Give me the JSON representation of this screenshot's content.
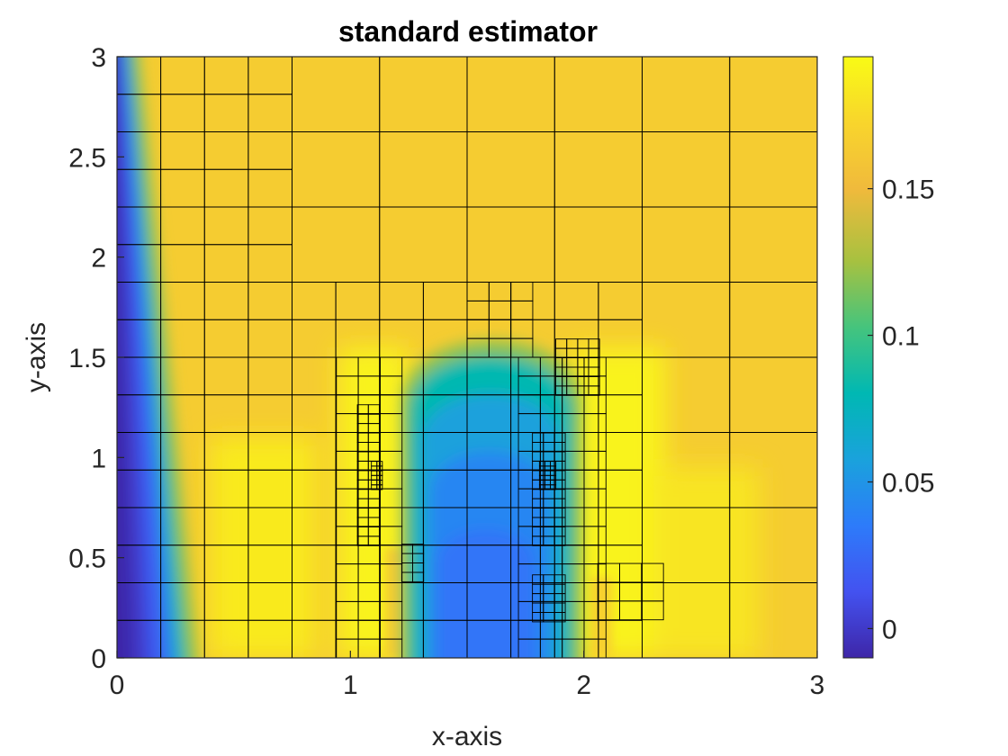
{
  "chart_data": {
    "type": "heatmap",
    "title": "standard estimator",
    "xlabel": "x-axis",
    "ylabel": "y-axis",
    "xlim": [
      0,
      3
    ],
    "ylim": [
      0,
      3
    ],
    "x_ticks": [
      "0",
      "1",
      "2",
      "3"
    ],
    "y_ticks": [
      "0",
      "0.5",
      "1",
      "1.5",
      "2",
      "2.5",
      "3"
    ],
    "colorbar": {
      "range": [
        -0.01,
        0.195
      ],
      "ticks": [
        "0",
        "0.05",
        "0.1",
        "0.15"
      ],
      "colormap": "parula",
      "colors": [
        "#3e26a8",
        "#4352f0",
        "#2d7bfa",
        "#1aa2dc",
        "#00b8b3",
        "#45c47d",
        "#a7c140",
        "#f0ba3c",
        "#f8d52c",
        "#f9fb15"
      ]
    },
    "field_description_values": {
      "background": 0.165,
      "left_boundary_min": -0.01,
      "central_plume_min": 0.02,
      "central_plume_top_y": 1.65,
      "central_plume_x_range": [
        1.25,
        1.95
      ],
      "yellow_band_max": 0.19
    },
    "mesh": {
      "type": "adaptive quadtree",
      "levels": [
        0.1875,
        0.09375,
        0.046875,
        0.0234375
      ],
      "max_cell_size": 0.375
    }
  }
}
